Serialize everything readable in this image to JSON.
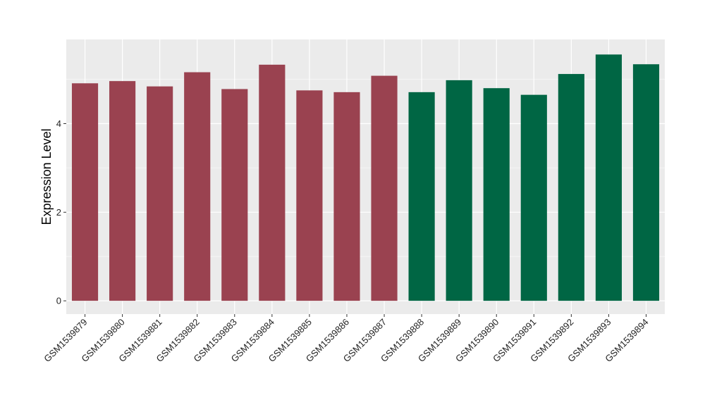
{
  "chart_data": {
    "type": "bar",
    "title": "",
    "xlabel": "",
    "ylabel": "Expression Level",
    "ylim": [
      -0.3,
      5.9
    ],
    "yticks": [
      0,
      2,
      4
    ],
    "grid": true,
    "legend": "none",
    "colors": {
      "panel_background": "#EBEBEB",
      "grid_major": "#FFFFFF",
      "grid_minor": "#F5F5F5",
      "group_1": "#9A4250",
      "group_2": "#006644"
    },
    "categories": [
      "GSM1539879",
      "GSM1539880",
      "GSM1539881",
      "GSM1539882",
      "GSM1539883",
      "GSM1539884",
      "GSM1539885",
      "GSM1539886",
      "GSM1539887",
      "GSM1539888",
      "GSM1539889",
      "GSM1539890",
      "GSM1539891",
      "GSM1539892",
      "GSM1539893",
      "GSM1539894"
    ],
    "values": [
      4.91,
      4.96,
      4.84,
      5.16,
      4.78,
      5.33,
      4.75,
      4.71,
      5.08,
      4.71,
      4.98,
      4.8,
      4.65,
      5.12,
      5.56,
      5.34
    ],
    "bar_groups": [
      1,
      1,
      1,
      1,
      1,
      1,
      1,
      1,
      1,
      2,
      2,
      2,
      2,
      2,
      2,
      2
    ]
  }
}
